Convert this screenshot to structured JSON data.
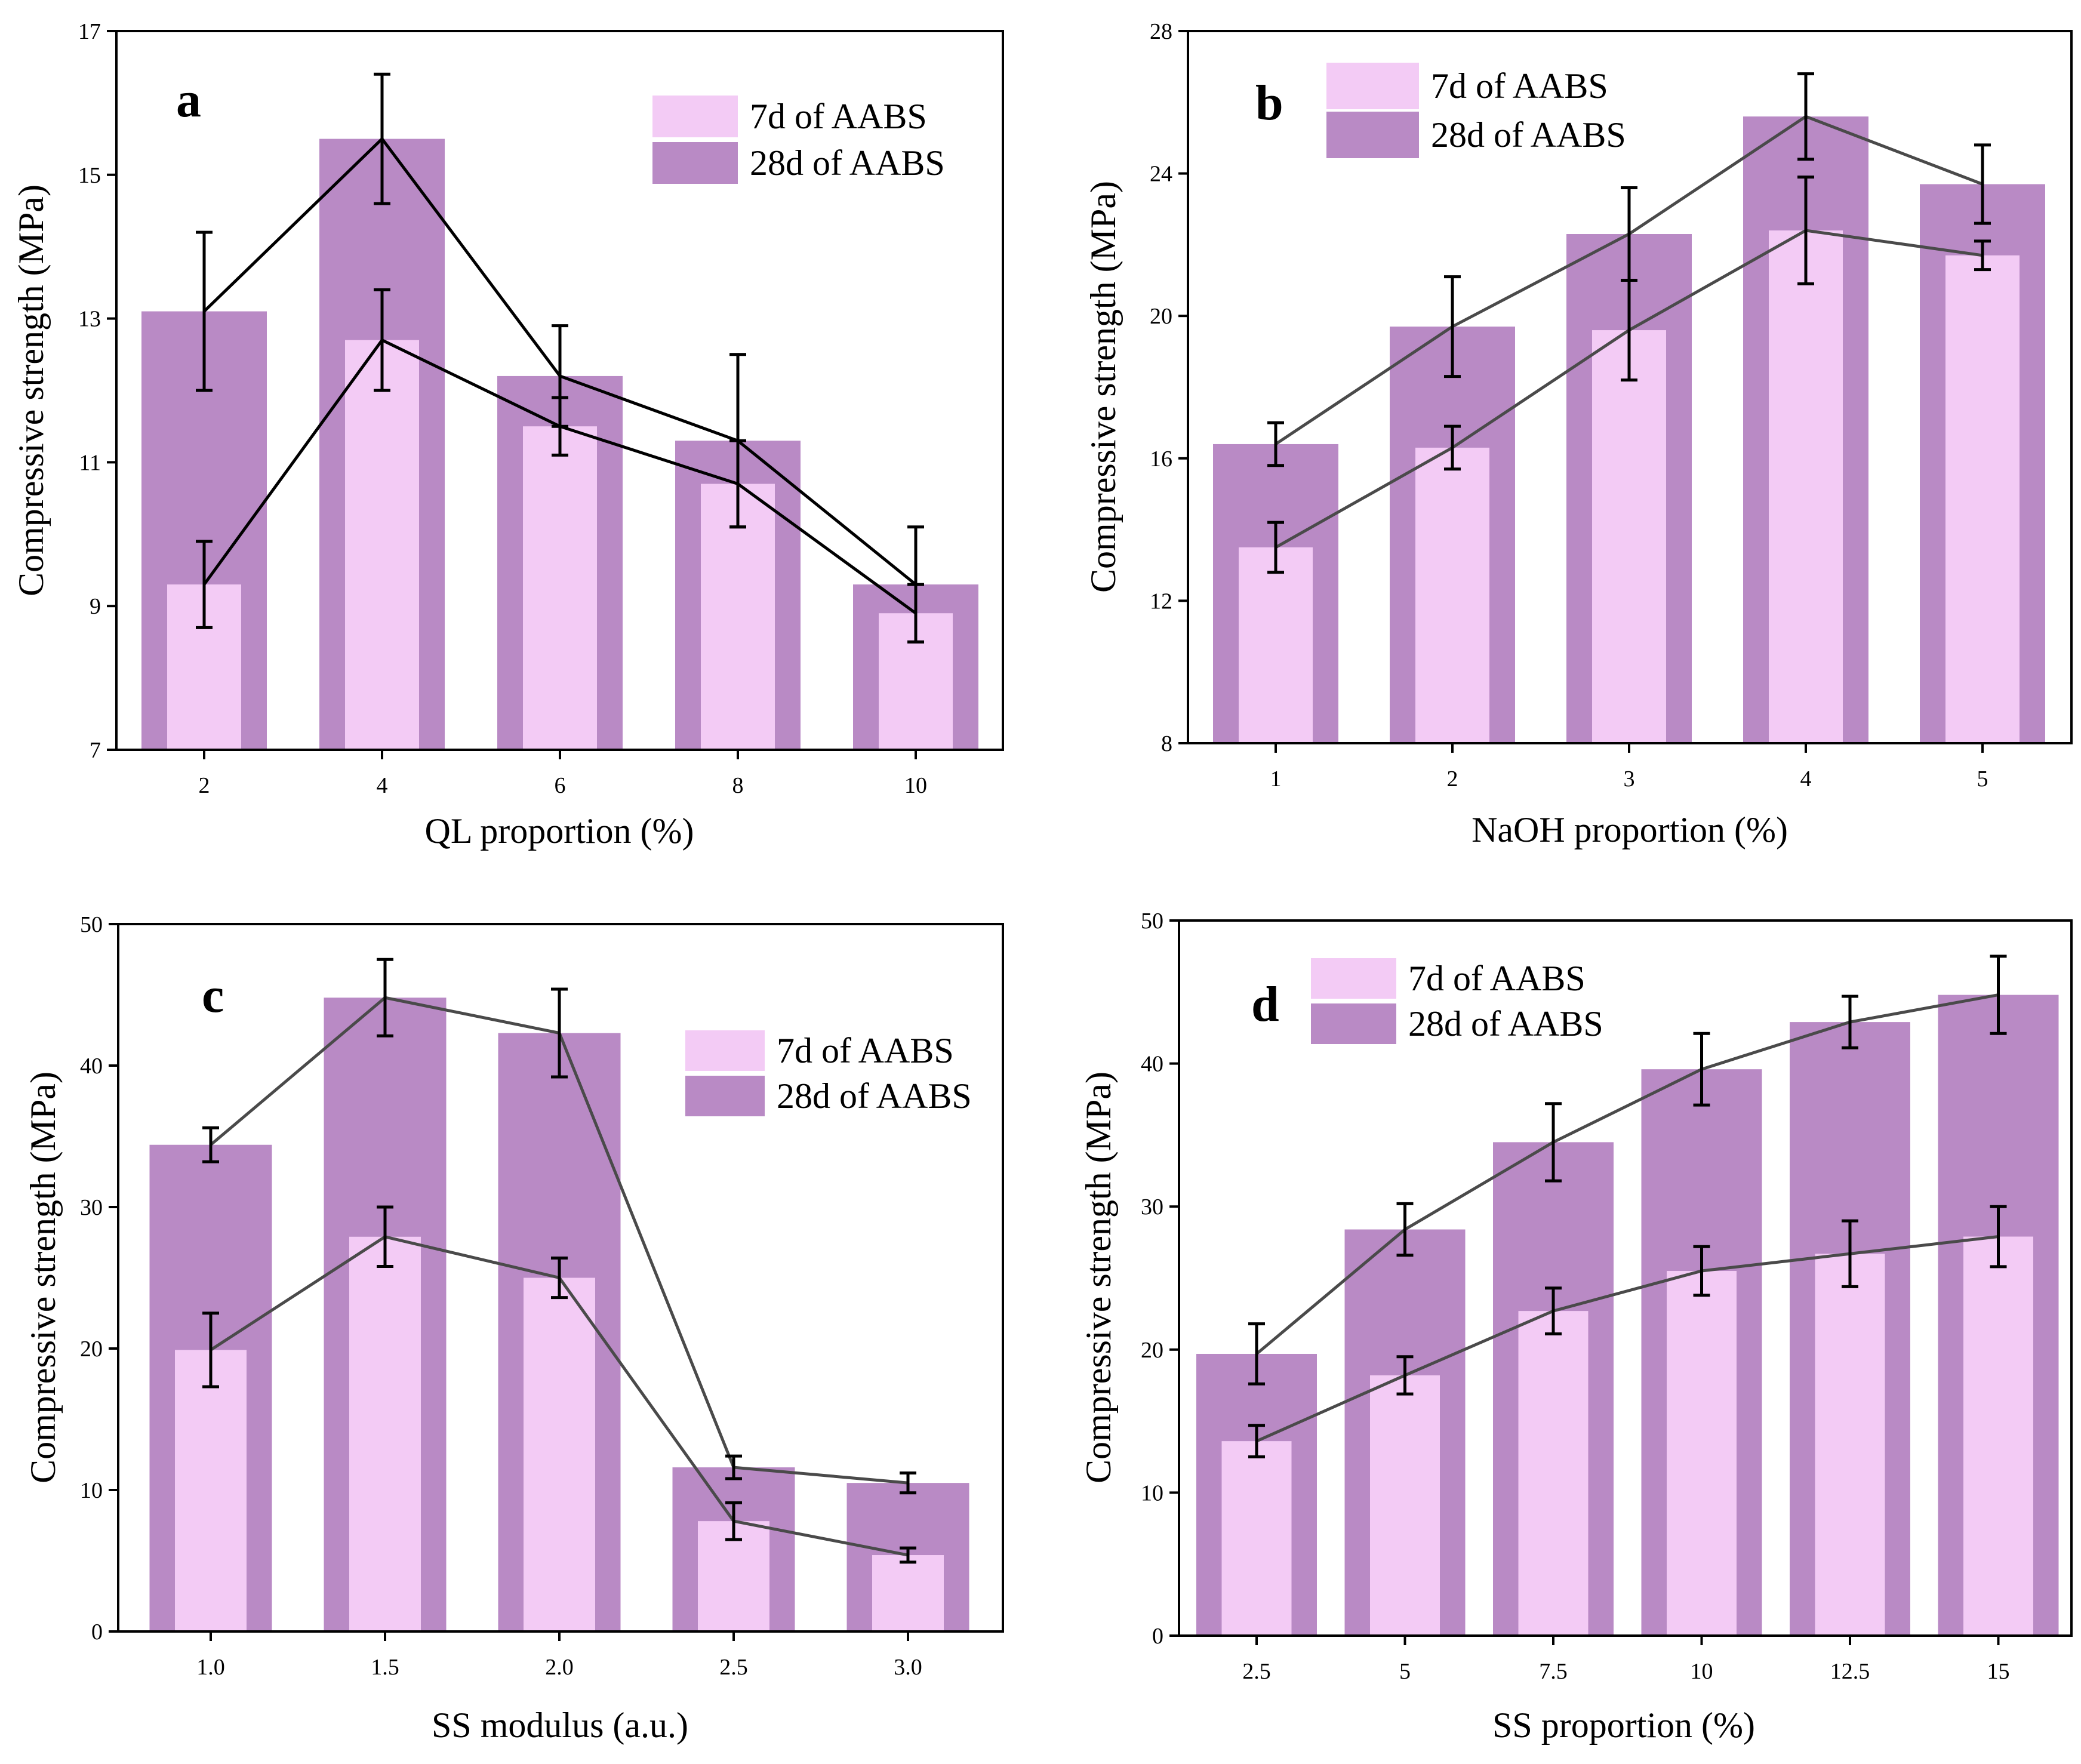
{
  "colors": {
    "bar_28d": "#B98AC5",
    "bar_7d": "#F3CBF5",
    "line": "#000000",
    "line_alt": "#4A4A4A",
    "axis": "#000000"
  },
  "chart_data": [
    {
      "type": "bar",
      "panel_letter": "a",
      "xlabel": "QL proportion (%)",
      "ylabel": "Compressive strength (MPa)",
      "categories": [
        "2",
        "4",
        "6",
        "8",
        "10"
      ],
      "ylim": [
        7,
        17
      ],
      "yticks": [
        7,
        9,
        11,
        13,
        15,
        17
      ],
      "legend_position": "top-right",
      "series": [
        {
          "name": "7d of AABS",
          "values": [
            9.3,
            12.7,
            11.5,
            10.7,
            8.9
          ],
          "errors": [
            0.6,
            0.7,
            0.4,
            0.6,
            0.4
          ]
        },
        {
          "name": "28d of AABS",
          "values": [
            13.1,
            15.5,
            12.2,
            11.3,
            9.3
          ],
          "errors": [
            1.1,
            0.9,
            0.7,
            1.2,
            0.8
          ]
        }
      ]
    },
    {
      "type": "bar",
      "panel_letter": "b",
      "xlabel": "NaOH proportion (%)",
      "ylabel": "Compressive strength (MPa)",
      "categories": [
        "1",
        "2",
        "3",
        "4",
        "5"
      ],
      "ylim": [
        8,
        28
      ],
      "yticks": [
        8,
        12,
        16,
        20,
        24,
        28
      ],
      "legend_position": "top-left",
      "series": [
        {
          "name": "7d of AABS",
          "values": [
            13.5,
            16.3,
            19.6,
            22.4,
            21.7
          ],
          "errors": [
            0.7,
            0.6,
            1.4,
            1.5,
            0.4
          ]
        },
        {
          "name": "28d of AABS",
          "values": [
            16.4,
            19.7,
            22.3,
            25.6,
            23.7
          ],
          "errors": [
            0.6,
            1.4,
            1.3,
            1.2,
            1.1
          ]
        }
      ]
    },
    {
      "type": "bar",
      "panel_letter": "c",
      "xlabel": "SS modulus (a.u.)",
      "ylabel": "Compressive strength (MPa)",
      "categories": [
        "1.0",
        "1.5",
        "2.0",
        "2.5",
        "3.0"
      ],
      "ylim": [
        0,
        50
      ],
      "yticks": [
        0,
        10,
        20,
        30,
        40,
        50
      ],
      "legend_position": "top-right",
      "series": [
        {
          "name": "7d of AABS",
          "values": [
            19.9,
            27.9,
            25.0,
            7.8,
            5.4
          ],
          "errors": [
            2.6,
            2.1,
            1.4,
            1.3,
            0.5
          ]
        },
        {
          "name": "28d of AABS",
          "values": [
            34.4,
            44.8,
            42.3,
            11.6,
            10.5
          ],
          "errors": [
            1.2,
            2.7,
            3.1,
            0.8,
            0.7
          ]
        }
      ]
    },
    {
      "type": "bar",
      "panel_letter": "d",
      "xlabel": "SS proportion (%)",
      "ylabel": "Compressive strength (MPa)",
      "categories": [
        "2.5",
        "5",
        "7.5",
        "10",
        "12.5",
        "15"
      ],
      "ylim": [
        0,
        50
      ],
      "yticks": [
        0,
        10,
        20,
        30,
        40,
        50
      ],
      "legend_position": "top-left",
      "series": [
        {
          "name": "7d of AABS",
          "values": [
            13.6,
            18.2,
            22.7,
            25.5,
            26.7,
            27.9
          ],
          "errors": [
            1.1,
            1.3,
            1.6,
            1.7,
            2.3,
            2.1
          ]
        },
        {
          "name": "28d of AABS",
          "values": [
            19.7,
            28.4,
            34.5,
            39.6,
            42.9,
            44.8
          ],
          "errors": [
            2.1,
            1.8,
            2.7,
            2.5,
            1.8,
            2.7
          ]
        }
      ]
    }
  ]
}
